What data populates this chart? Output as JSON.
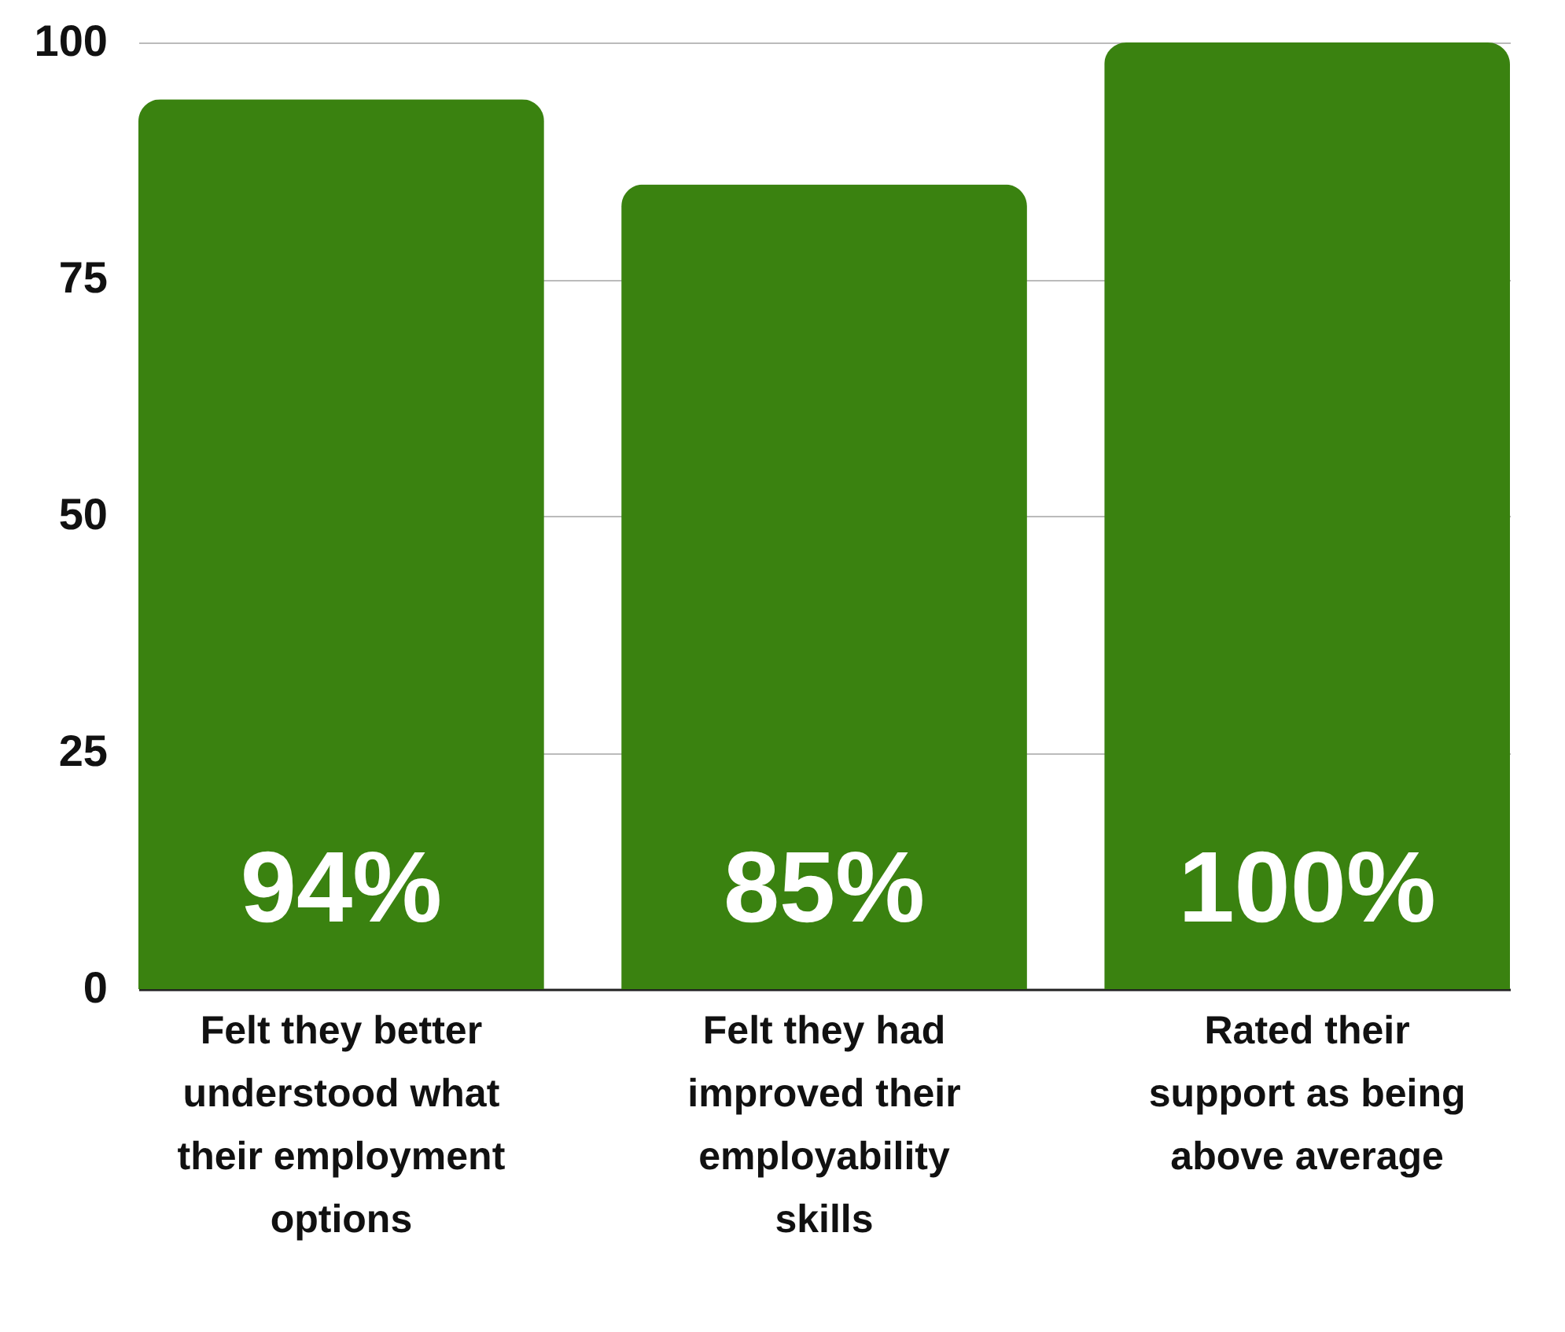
{
  "chart_data": {
    "type": "bar",
    "categories": [
      "Felt they better understood what their employment options",
      "Felt they had improved their employability skills",
      "Rated their support as being above average"
    ],
    "values": [
      94,
      85,
      100
    ],
    "value_labels": [
      "94%",
      "85%",
      "100%"
    ],
    "color": "#3a8210",
    "ylim": [
      0,
      100
    ],
    "yticks": [
      0,
      25,
      50,
      75,
      100
    ],
    "grid": "y"
  }
}
